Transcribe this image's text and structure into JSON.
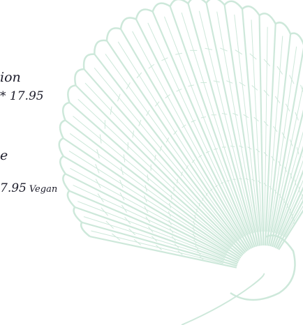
{
  "items": [
    {
      "name": "ion",
      "price": "* 17.95"
    },
    {
      "name": "e",
      "price": "7.95",
      "tag": "Vegan"
    }
  ]
}
